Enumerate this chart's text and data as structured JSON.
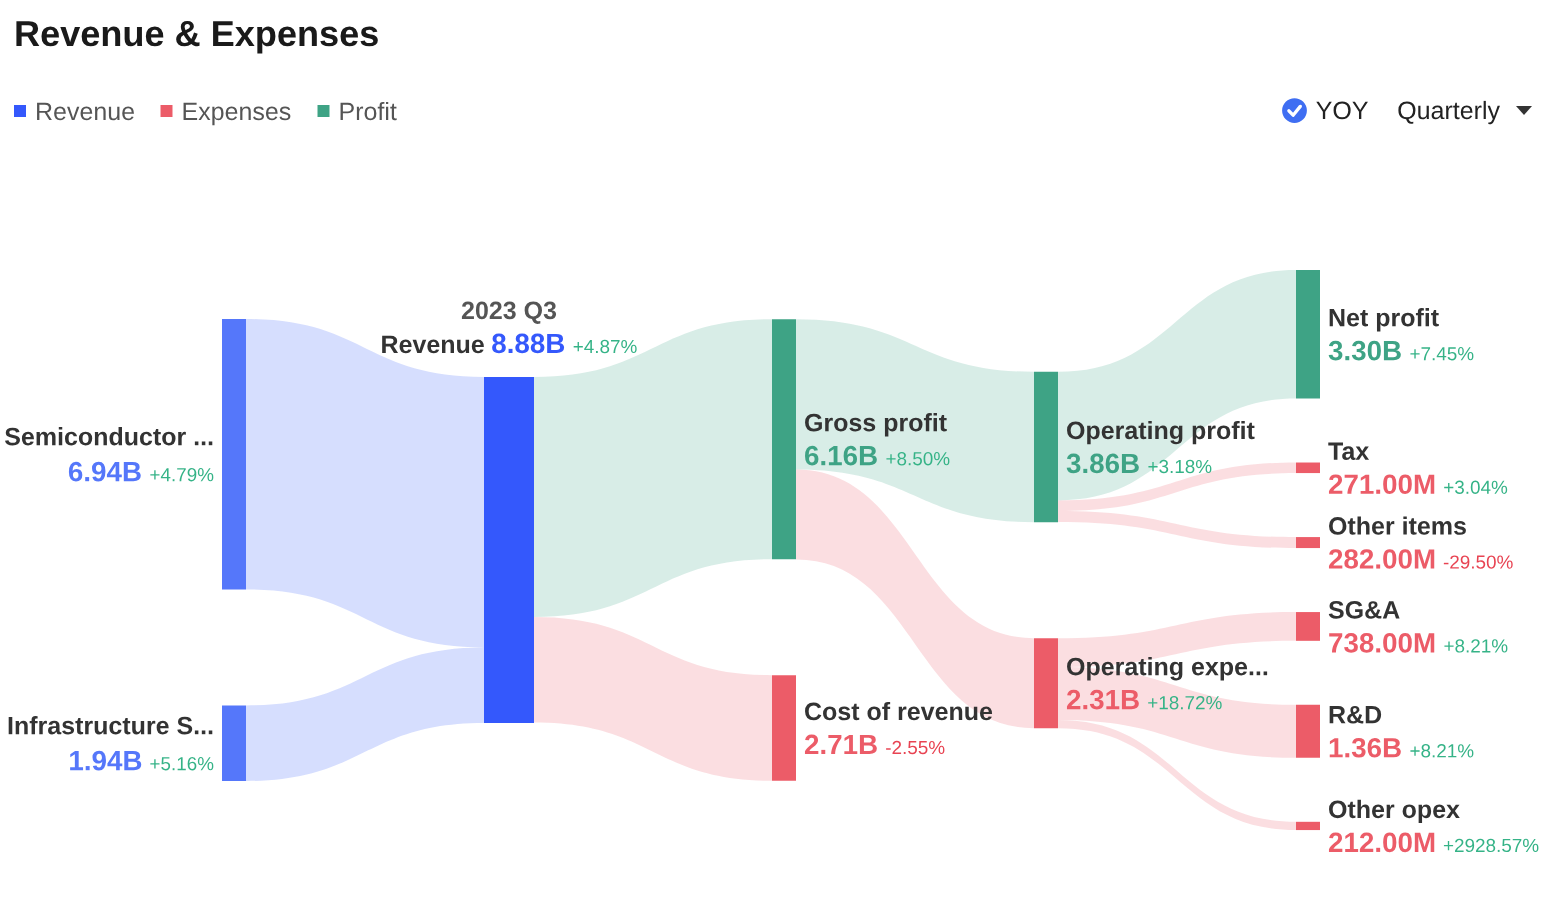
{
  "chart_data": {
    "type": "other",
    "title": "Revenue & Expenses",
    "subtitle": "2023 Q3",
    "legend": "top left",
    "categories": [
      "Semiconductor ...",
      "Infrastructure S...",
      "Revenue",
      "Gross profit",
      "Cost of revenue",
      "Operating profit",
      "Operating expe...",
      "Net profit",
      "Tax",
      "Other items",
      "SG&A",
      "R&D",
      "Other opex"
    ],
    "series": [
      {
        "name": "Revenue",
        "color": "#3458fc",
        "colors": [
          "#5577fa",
          "#5577fa",
          "#3458fc",
          null,
          null,
          null,
          null,
          null,
          null,
          null,
          null,
          null,
          null
        ],
        "values": [
          6940000000,
          1940000000,
          8880000000,
          null,
          null,
          null,
          null,
          null,
          null,
          null,
          null,
          null,
          null
        ],
        "value_labels": [
          "6.94B",
          "1.94B",
          "8.88B",
          null,
          null,
          null,
          null,
          null,
          null,
          null,
          null,
          null,
          null
        ]
      },
      {
        "name": "Expenses",
        "color": "#ec5c68",
        "values": [
          null,
          null,
          null,
          null,
          2710000000,
          null,
          2310000000,
          null,
          271000000,
          282000000,
          738000000,
          1360000000,
          212000000
        ],
        "value_labels": [
          null,
          null,
          null,
          null,
          "2.71B",
          null,
          "2.31B",
          null,
          "271.00M",
          "282.00M",
          "738.00M",
          "1.36B",
          "212.00M"
        ]
      },
      {
        "name": "Profit",
        "color": "#3ea385",
        "values": [
          null,
          null,
          null,
          6160000000,
          null,
          3860000000,
          null,
          3300000000,
          null,
          null,
          null,
          null,
          null
        ],
        "value_labels": [
          null,
          null,
          null,
          "6.16B",
          null,
          "3.86B",
          null,
          "3.30B",
          null,
          null,
          null,
          null,
          null
        ]
      }
    ],
    "annotations": [
      "YOY",
      "Quarterly",
      {
        "text": "+4.79%",
        "x": "Semiconductor ..."
      },
      {
        "text": "+5.16%",
        "x": "Infrastructure S..."
      },
      {
        "text": "+4.87%",
        "x": "Revenue"
      },
      {
        "text": "+8.50%",
        "x": "Gross profit"
      },
      {
        "text": "-2.55%",
        "x": "Cost of revenue"
      },
      {
        "text": "+3.18%",
        "x": "Operating profit"
      },
      {
        "text": "+18.72%",
        "x": "Operating expe..."
      },
      {
        "text": "+7.45%",
        "x": "Net profit"
      },
      {
        "text": "+3.04%",
        "x": "Tax"
      },
      {
        "text": "-29.50%",
        "x": "Other items"
      },
      {
        "text": "+8.21%",
        "x": "SG&A"
      },
      {
        "text": "+8.21%",
        "x": "R&D"
      },
      {
        "text": "+2928.57%",
        "x": "Other opex"
      }
    ]
  }
}
